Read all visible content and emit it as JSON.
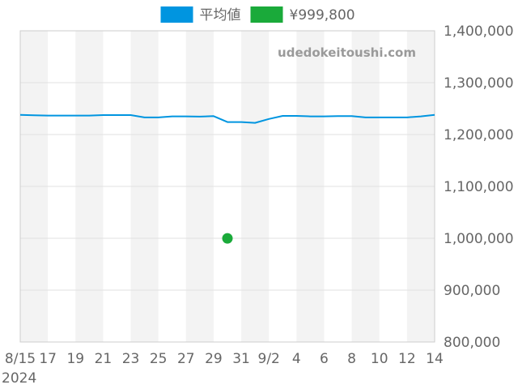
{
  "chart_data": {
    "type": "line",
    "title": "",
    "xlabel": "",
    "ylabel": "",
    "ylim": [
      800000,
      1400000
    ],
    "y_axis_position": "right",
    "y_ticks": [
      800000,
      900000,
      1000000,
      1100000,
      1200000,
      1300000,
      1400000
    ],
    "y_tick_labels": [
      "800,000",
      "900,000",
      "1,000,000",
      "1,100,000",
      "1,200,000",
      "1,300,000",
      "1,400,000"
    ],
    "x_tick_labels": [
      "8/15",
      "17",
      "19",
      "21",
      "23",
      "25",
      "27",
      "29",
      "31",
      "9/2",
      "4",
      "6",
      "8",
      "10",
      "12",
      "14"
    ],
    "x_sub_label": "2024",
    "watermark": "udedokeitoushi.com",
    "grid": true,
    "legend_position": "top-center",
    "series": [
      {
        "name": "平均値",
        "color": "#0095e0",
        "kind": "line",
        "points": [
          {
            "x": "2024-08-15",
            "y": 1238000
          },
          {
            "x": "2024-08-16",
            "y": 1237000
          },
          {
            "x": "2024-08-17",
            "y": 1236500
          },
          {
            "x": "2024-08-18",
            "y": 1236500
          },
          {
            "x": "2024-08-19",
            "y": 1236500
          },
          {
            "x": "2024-08-20",
            "y": 1236500
          },
          {
            "x": "2024-08-21",
            "y": 1237500
          },
          {
            "x": "2024-08-22",
            "y": 1237500
          },
          {
            "x": "2024-08-23",
            "y": 1237500
          },
          {
            "x": "2024-08-24",
            "y": 1233000
          },
          {
            "x": "2024-08-25",
            "y": 1233000
          },
          {
            "x": "2024-08-26",
            "y": 1235000
          },
          {
            "x": "2024-08-27",
            "y": 1235000
          },
          {
            "x": "2024-08-28",
            "y": 1234500
          },
          {
            "x": "2024-08-29",
            "y": 1235500
          },
          {
            "x": "2024-08-30",
            "y": 1224000
          },
          {
            "x": "2024-08-31",
            "y": 1224000
          },
          {
            "x": "2024-09-01",
            "y": 1222500
          },
          {
            "x": "2024-09-02",
            "y": 1230000
          },
          {
            "x": "2024-09-03",
            "y": 1236000
          },
          {
            "x": "2024-09-04",
            "y": 1236000
          },
          {
            "x": "2024-09-05",
            "y": 1235000
          },
          {
            "x": "2024-09-06",
            "y": 1235000
          },
          {
            "x": "2024-09-07",
            "y": 1235500
          },
          {
            "x": "2024-09-08",
            "y": 1235500
          },
          {
            "x": "2024-09-09",
            "y": 1233000
          },
          {
            "x": "2024-09-10",
            "y": 1233000
          },
          {
            "x": "2024-09-11",
            "y": 1233000
          },
          {
            "x": "2024-09-12",
            "y": 1233000
          },
          {
            "x": "2024-09-13",
            "y": 1235000
          },
          {
            "x": "2024-09-14",
            "y": 1238000
          }
        ]
      },
      {
        "name": "¥999,800",
        "color": "#1aaa3a",
        "kind": "point",
        "points": [
          {
            "x": "2024-08-30",
            "y": 999800
          }
        ]
      }
    ]
  }
}
